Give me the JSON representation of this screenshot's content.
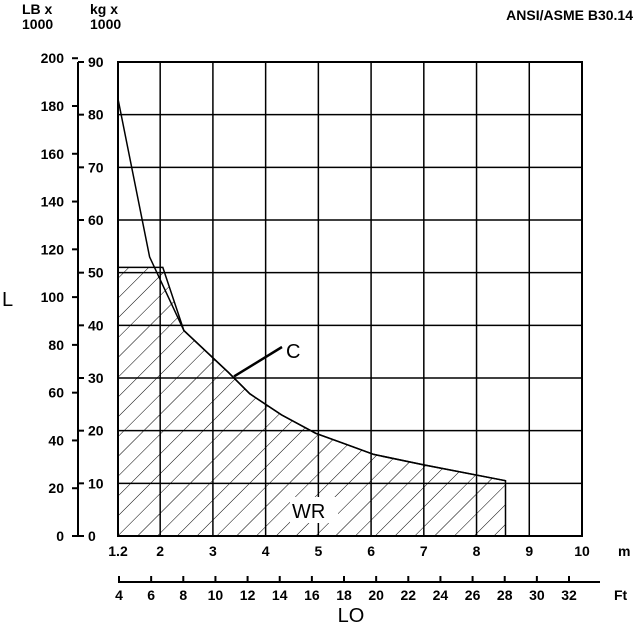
{
  "chart_data": {
    "type": "area",
    "standard_label": "ANSI/ASME B30.14",
    "y_left_unit": "LB x 1000",
    "y_right_unit": "kg x 1000",
    "y_left_unit_lines": [
      "LB x",
      "1000"
    ],
    "y_right_unit_lines": [
      "kg x",
      "1000"
    ],
    "y_axis_letter": "L",
    "x_axis_letter": "LO",
    "x_unit_m": "m",
    "x_unit_ft": "Ft",
    "y_left_ticks": [
      0,
      20,
      40,
      60,
      80,
      100,
      120,
      140,
      160,
      180,
      200
    ],
    "y_right_ticks": [
      0,
      10,
      20,
      30,
      40,
      50,
      60,
      70,
      80,
      90
    ],
    "x_m_ticks": [
      "1.2",
      "2",
      "3",
      "4",
      "5",
      "6",
      "7",
      "8",
      "9",
      "10"
    ],
    "x_ft_ticks": [
      "4",
      "6",
      "8",
      "10",
      "12",
      "14",
      "16",
      "18",
      "20",
      "22",
      "24",
      "26",
      "28",
      "30",
      "32"
    ],
    "xlim_m": [
      1.2,
      10
    ],
    "ylim_kg": [
      0,
      90
    ],
    "grid": true,
    "series": [
      {
        "name": "C",
        "x_m": [
          1.2,
          1.8,
          2.45,
          3.3,
          3.7,
          4.3,
          4.95,
          5.5,
          6.05,
          7.0,
          8.55
        ],
        "y_kg": [
          83,
          53,
          39,
          31,
          27,
          23,
          19.5,
          17.5,
          15.5,
          13.5,
          10.5
        ]
      },
      {
        "name": "WR",
        "x_m": [
          1.2,
          2.05,
          2.45,
          3.3,
          3.7,
          4.3,
          4.95,
          5.5,
          6.05,
          7.0,
          8.55,
          8.55,
          1.2
        ],
        "y_kg": [
          51,
          51,
          39,
          31,
          27,
          23,
          19.5,
          17.5,
          15.5,
          13.5,
          10.5,
          0,
          0
        ]
      }
    ]
  }
}
